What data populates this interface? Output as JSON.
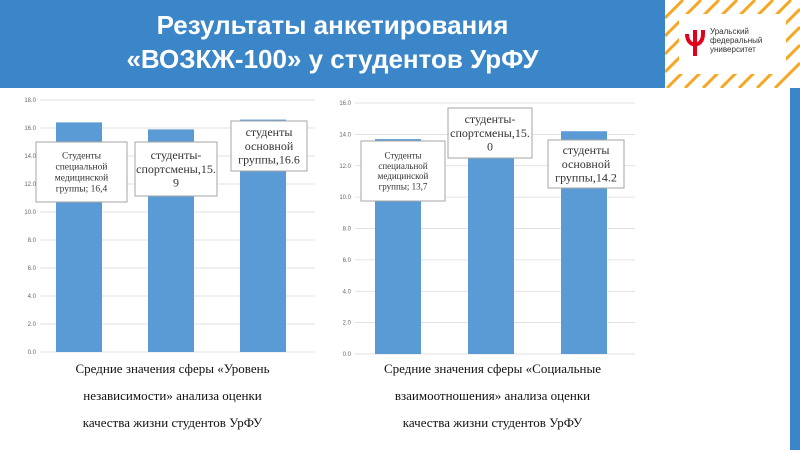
{
  "header": {
    "title_line1": "Результаты анкетирования",
    "title_line2": "«ВОЗКЖ-100» у студентов УрФУ",
    "color": "#3a86c8"
  },
  "logo": {
    "line1": "Уральский",
    "line2": "федеральный",
    "line3": "университет",
    "accent": "#f5a623",
    "brand_mark": "#e2001a"
  },
  "chart_data": [
    {
      "type": "bar",
      "categories": [
        "Студенты специальной медицинской группы",
        "студенты-спортсмены",
        "студенты основной группы"
      ],
      "values": [
        16.4,
        15.9,
        16.6
      ],
      "ylim": [
        0,
        18
      ],
      "yticks": [
        "0.0",
        "2.0",
        "4.0",
        "6.0",
        "8.0",
        "10.0",
        "12.0",
        "14.0",
        "16.0",
        "18.0"
      ],
      "data_labels": [
        [
          "Студенты",
          "специальной",
          "медицинской",
          "группы; 16,4"
        ],
        [
          "студенты-",
          "спортсмены,15.",
          "9"
        ],
        [
          "студенты",
          "основной",
          "группы,16.6"
        ]
      ],
      "bar_color": "#5b9bd5",
      "caption": [
        "Средние значения сферы «Уровень",
        "независимости» анализа оценки",
        "качества жизни студентов УрФУ"
      ]
    },
    {
      "type": "bar",
      "categories": [
        "Студенты специальной медицинской группы",
        "студенты-спортсмены",
        "студенты основной группы"
      ],
      "values": [
        13.7,
        15.0,
        14.2
      ],
      "ylim": [
        0,
        16
      ],
      "yticks": [
        "0.0",
        "2.0",
        "4.0",
        "6.0",
        "8.0",
        "10.0",
        "12.0",
        "14.0",
        "16.0"
      ],
      "data_labels": [
        [
          "Студенты",
          "специальной",
          "медицинской",
          "группы; 13,7"
        ],
        [
          "студенты-",
          "спортсмены,15.",
          "0"
        ],
        [
          "студенты",
          "основной",
          "группы,14.2"
        ]
      ],
      "bar_color": "#5b9bd5",
      "caption": [
        "Средние значения сферы «Социальные",
        "взаимоотношения» анализа оценки",
        "качества жизни студентов УрФУ"
      ]
    }
  ]
}
